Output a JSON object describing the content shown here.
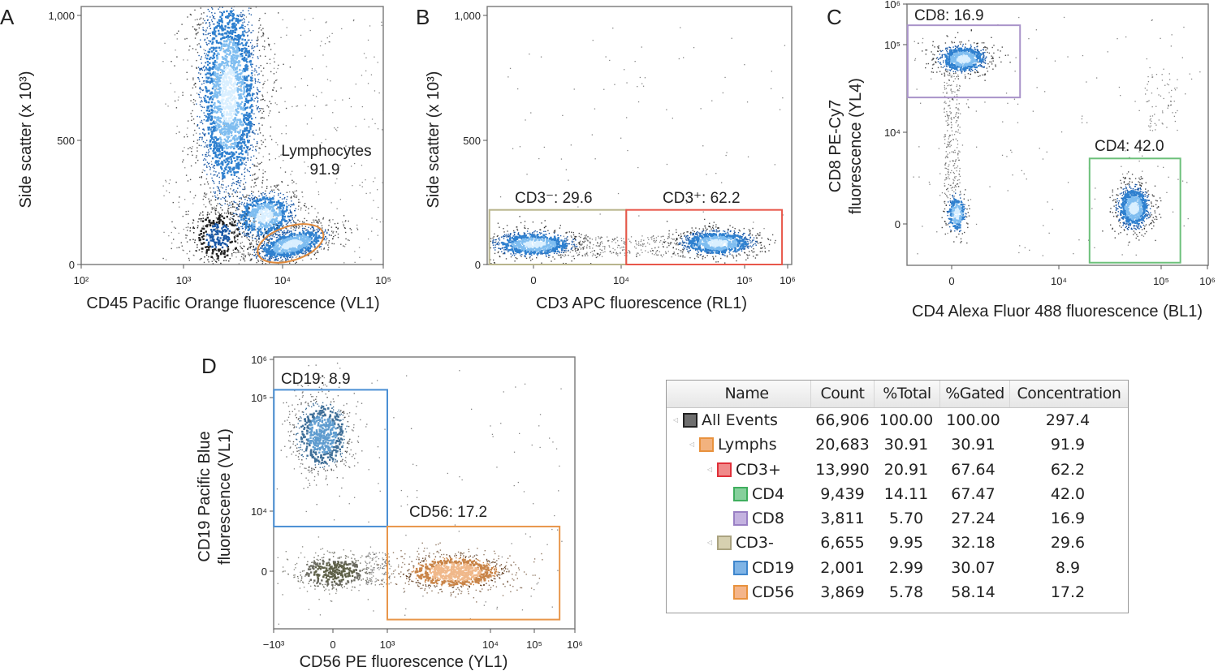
{
  "chart_data": [
    {
      "panel": "A",
      "type": "scatter",
      "xlabel": "CD45 Pacific Orange fluorescence (VL1)",
      "ylabel": "Side scatter (x 10³)",
      "x_scale": "log",
      "y_scale": "linear",
      "xlim": [
        100,
        100000
      ],
      "ylim": [
        0,
        1036
      ],
      "x_ticks": [
        {
          "v": 100,
          "label": "10²"
        },
        {
          "v": 1000,
          "label": "10³"
        },
        {
          "v": 10000,
          "label": "10⁴"
        },
        {
          "v": 100000,
          "label": "10⁵"
        }
      ],
      "y_ticks": [
        {
          "v": 0,
          "label": "0"
        },
        {
          "v": 500,
          "label": "500"
        },
        {
          "v": 1000,
          "label": "1,000"
        }
      ],
      "gates": [
        {
          "label": "Lymphocytes",
          "value": "91.9",
          "shape": "ellipse",
          "center": [
            12000,
            85
          ],
          "color": "#e08a3c"
        }
      ],
      "populations": [
        {
          "center": [
            2800,
            687
          ],
          "color": "#1f6fc0"
        },
        {
          "center": [
            6500,
            200
          ],
          "color": "#1f6fc0"
        },
        {
          "center": [
            12000,
            85
          ],
          "color": "#1f6fc0"
        },
        {
          "center": [
            2200,
            117
          ],
          "color": "#1f6fc0"
        }
      ]
    },
    {
      "panel": "B",
      "type": "scatter",
      "xlabel": "CD3 APC fluorescence (RL1)",
      "ylabel": "Side scatter (x 10³)",
      "x_scale": "biexponential",
      "y_scale": "linear",
      "xlim": [
        -250,
        1250000
      ],
      "ylim": [
        0,
        1036
      ],
      "x_ticks": [
        {
          "v": 0,
          "label": "0"
        },
        {
          "v": 10000,
          "label": "10⁴"
        },
        {
          "v": 100000,
          "label": "10⁵"
        },
        {
          "v": 1000000,
          "label": "10⁶"
        }
      ],
      "y_ticks": [
        {
          "v": 0,
          "label": "0"
        },
        {
          "v": 500,
          "label": "500"
        },
        {
          "v": 1000,
          "label": "1,000"
        }
      ],
      "gates": [
        {
          "label": "CD3⁻: 29.6",
          "shape": "rect",
          "x": [
            -230,
            11000
          ],
          "y": [
            0,
            220
          ],
          "color": "#b8b48c"
        },
        {
          "label": "CD3⁺: 62.2",
          "shape": "rect",
          "x": [
            11000,
            740000
          ],
          "y": [
            0,
            220
          ],
          "color": "#e8574a"
        }
      ],
      "populations": [
        {
          "center": [
            0,
            85
          ],
          "color": "#1f6fc0"
        },
        {
          "center": [
            60000,
            90
          ],
          "color": "#1f6fc0"
        }
      ]
    },
    {
      "panel": "C",
      "type": "scatter",
      "xlabel": "CD4 Alexa Fluor 488 fluorescence (BL1)",
      "ylabel": [
        "CD8 PE-Cy7",
        "fluorescence (YL4)"
      ],
      "x_scale": "biexponential",
      "y_scale": "biexponential",
      "xlim": [
        -600,
        1000000
      ],
      "ylim": [
        -700,
        1000000
      ],
      "x_ticks": [
        {
          "v": 0,
          "label": "0"
        },
        {
          "v": 10000,
          "label": "10⁴"
        },
        {
          "v": 100000,
          "label": "10⁵"
        },
        {
          "v": 1000000,
          "label": "10⁶"
        }
      ],
      "y_ticks": [
        {
          "v": 0,
          "label": "0"
        },
        {
          "v": 10000,
          "label": "10⁴"
        },
        {
          "v": 100000,
          "label": "10⁵"
        },
        {
          "v": 1000000,
          "label": "10⁶"
        }
      ],
      "gates": [
        {
          "label": "CD8: 16.9",
          "shape": "rect",
          "x": [
            -580,
            1800
          ],
          "y": [
            25000,
            300000
          ],
          "color": "#a993c9"
        },
        {
          "label": "CD4: 42.0",
          "shape": "rect",
          "x": [
            20000,
            260000
          ],
          "y": [
            -600,
            2600
          ],
          "color": "#6cc07a"
        }
      ],
      "populations": [
        {
          "center": [
            60,
            70000
          ],
          "color": "#1f6fc0"
        },
        {
          "center": [
            20,
            77
          ],
          "color": "#1f6fc0"
        },
        {
          "center": [
            53000,
            135
          ],
          "color": "#1f6fc0"
        }
      ]
    },
    {
      "panel": "D",
      "type": "scatter",
      "xlabel": "CD56 PE fluorescence (YL1)",
      "ylabel": [
        "CD19 Pacific Blue",
        "fluorescence (VL1)"
      ],
      "x_scale": "biexponential",
      "y_scale": "biexponential",
      "xlim": [
        -1000,
        1000000
      ],
      "ylim": [
        -8000,
        1000000
      ],
      "x_ticks": [
        {
          "v": -1000,
          "label": "−10³"
        },
        {
          "v": 0,
          "label": "0"
        },
        {
          "v": 1000,
          "label": "10³"
        },
        {
          "v": 10000,
          "label": "10⁴"
        },
        {
          "v": 100000,
          "label": "10⁵"
        },
        {
          "v": 1000000,
          "label": "10⁶"
        }
      ],
      "y_ticks": [
        {
          "v": 0,
          "label": "0"
        },
        {
          "v": 10000,
          "label": "10⁴"
        },
        {
          "v": 100000,
          "label": "10⁵"
        },
        {
          "v": 1000000,
          "label": "10⁶"
        }
      ],
      "gates": [
        {
          "label": "CD19: 8.9",
          "shape": "rect",
          "x": [
            -990,
            1000
          ],
          "y": [
            3000,
            160000
          ],
          "color": "#4a8fd4"
        },
        {
          "label": "CD56: 17.2",
          "shape": "rect",
          "x": [
            1000,
            420000
          ],
          "y": [
            -3900,
            3000
          ],
          "color": "#e8964a"
        }
      ],
      "populations": [
        {
          "center": [
            -60,
            48000
          ],
          "color": "#4f86b8"
        },
        {
          "center": [
            0,
            0
          ],
          "color": "#6b6b4e"
        },
        {
          "center": [
            4500,
            0
          ],
          "color": "#c98448"
        }
      ]
    }
  ],
  "table": {
    "columns": [
      "Name",
      "Count",
      "%Total",
      "%Gated",
      "Concentration"
    ],
    "rows": [
      {
        "name": "All Events",
        "level": 0,
        "color": "#6e6e6e",
        "border": "#222222",
        "count": "66,906",
        "total": "100.00",
        "gated": "100.00",
        "conc": "297.4"
      },
      {
        "name": "Lymphs",
        "level": 1,
        "color": "#f2b27e",
        "border": "#e8923e",
        "count": "20,683",
        "total": "30.91",
        "gated": "30.91",
        "conc": "91.9"
      },
      {
        "name": "CD3+",
        "level": 2,
        "color": "#f08a8a",
        "border": "#e0303a",
        "count": "13,990",
        "total": "20.91",
        "gated": "67.64",
        "conc": "62.2"
      },
      {
        "name": "CD4",
        "level": 3,
        "color": "#86d09c",
        "border": "#3fae5e",
        "count": "9,439",
        "total": "14.11",
        "gated": "67.47",
        "conc": "42.0"
      },
      {
        "name": "CD8",
        "level": 3,
        "color": "#c4b2e0",
        "border": "#9a80c4",
        "count": "3,811",
        "total": "5.70",
        "gated": "27.24",
        "conc": "16.9"
      },
      {
        "name": "CD3-",
        "level": 2,
        "color": "#d6d0b0",
        "border": "#aaa380",
        "count": "6,655",
        "total": "9.95",
        "gated": "32.18",
        "conc": "29.6"
      },
      {
        "name": "CD19",
        "level": 3,
        "color": "#7fb4e6",
        "border": "#3f86cc",
        "count": "2,001",
        "total": "2.99",
        "gated": "30.07",
        "conc": "8.9"
      },
      {
        "name": "CD56",
        "level": 3,
        "color": "#f4b58a",
        "border": "#e8923e",
        "count": "3,869",
        "total": "5.78",
        "gated": "58.14",
        "conc": "17.2"
      }
    ]
  }
}
